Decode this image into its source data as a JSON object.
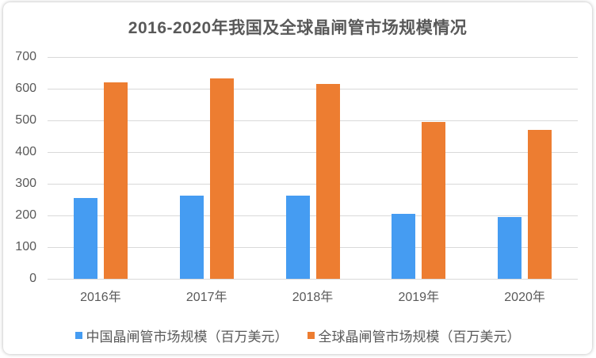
{
  "chart_data": {
    "type": "bar",
    "title": "2016-2020年我国及全球晶闸管市场规模情况",
    "categories": [
      "2016年",
      "2017年",
      "2018年",
      "2019年",
      "2020年"
    ],
    "series": [
      {
        "key": "china",
        "name": "中国晶闸管市场规模（百万美元）",
        "color": "#459CF2",
        "values": [
          255,
          262,
          263,
          205,
          195
        ]
      },
      {
        "key": "global",
        "name": "全球晶闸管市场规模（百万美元）",
        "color": "#ED7D31",
        "values": [
          621,
          632,
          614,
          494,
          469
        ]
      }
    ],
    "xlabel": "",
    "ylabel": "",
    "ylim": [
      0,
      700
    ],
    "ytick_step": 100,
    "yticks": [
      0,
      100,
      200,
      300,
      400,
      500,
      600,
      700
    ],
    "grid": true,
    "gridline_color": "#d9d9d9",
    "legend_position": "bottom",
    "title_color": "#595959",
    "axis_label_color": "#595959"
  }
}
